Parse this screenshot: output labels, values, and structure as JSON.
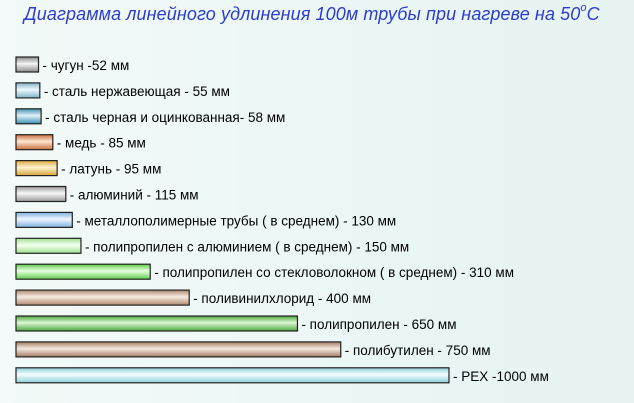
{
  "chart_data": {
    "type": "bar",
    "orientation": "horizontal",
    "title_prefix": "Диаграмма линейного удлинения 100м трубы при нагреве на 50",
    "title_sup": "о",
    "title_suffix": "С",
    "categories": [
      "чугун",
      "сталь нержавеющая",
      "сталь черная и оцинкованная",
      "медь",
      "латунь",
      "алюминий",
      "металлополимерные трубы ( в среднем)",
      "полипропилен с алюминием ( в среднем)",
      "полипропилен со стекловолокном ( в среднем)",
      "поливинилхлорид",
      "полипропилен",
      "полибутилен",
      "PEX"
    ],
    "values": [
      52,
      55,
      58,
      85,
      95,
      115,
      130,
      150,
      310,
      400,
      650,
      750,
      1000
    ],
    "labels": [
      "- чугун -52 мм",
      "- сталь нержавеющая - 55 мм",
      "- сталь черная и оцинкованная- 58  мм",
      "- медь - 85 мм",
      "- латунь - 95 мм",
      "- алюминий - 115 мм",
      "- металлополимерные трубы ( в среднем) - 130 мм",
      "- полипропилен с алюминием ( в среднем)  - 150 мм",
      "- полипропилен со стекловолокном ( в среднем)  - 310 мм",
      "- поливинилхлорид  - 400 мм",
      "- полипропилен - 650 мм",
      "- полибутилен - 750 мм",
      "- PEX -1000 мм"
    ],
    "colors": [
      [
        "#8a8a8a",
        "#f4f4f4"
      ],
      [
        "#7fb6cc",
        "#eef8fc"
      ],
      [
        "#3d8fb3",
        "#dff0f8"
      ],
      [
        "#c8703a",
        "#fde6d4"
      ],
      [
        "#d9a63a",
        "#fff2cf"
      ],
      [
        "#9a9a9a",
        "#f7f7f7"
      ],
      [
        "#7fb1e0",
        "#eef6ff"
      ],
      [
        "#9ee08e",
        "#f4fff0"
      ],
      [
        "#5ccc4a",
        "#e8ffe2"
      ],
      [
        "#b08a6e",
        "#f6ebe2"
      ],
      [
        "#49a83a",
        "#ddf7d6"
      ],
      [
        "#a37b63",
        "#f5e9e0"
      ],
      [
        "#8fd0da",
        "#f4feff"
      ]
    ],
    "xlim": [
      0,
      1000
    ]
  }
}
